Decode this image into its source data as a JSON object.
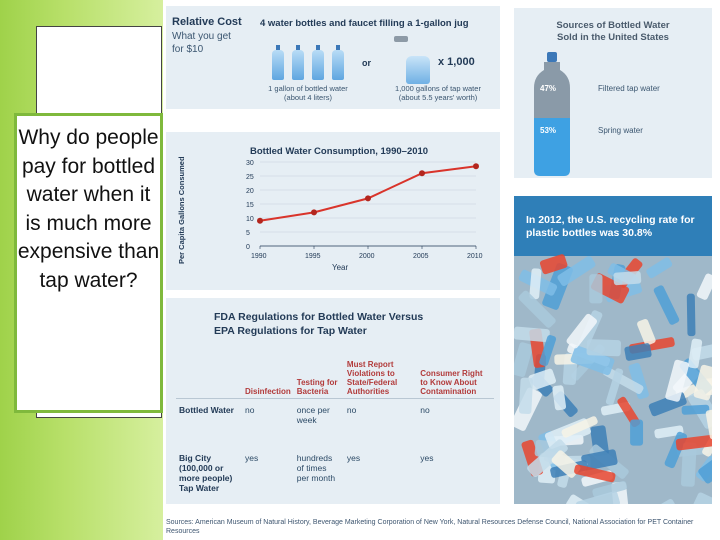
{
  "question": "Why do people pay for bottled water when it is much more expensive than tap water?",
  "cost_panel": {
    "heading": "Relative Cost",
    "subheading": "What you get for $10",
    "title": "4 water bottles and faucet filling a 1-gallon jug",
    "or": "or",
    "multiplier": "x 1,000",
    "left_caption_1": "1 gallon of bottled water",
    "left_caption_2": "(about 4 liters)",
    "right_caption_1": "1,000 gallons of tap water",
    "right_caption_2": "(about 5.5 years' worth)"
  },
  "pie_panel": {
    "title_1": "Sources of Bottled Water",
    "title_2": "Sold in the United States",
    "filtered_pct": "47%",
    "filtered_label": "Filtered tap water",
    "spring_pct": "53%",
    "spring_label": "Spring water",
    "filtered_color": "#8a9aa8",
    "spring_color": "#3ea1e3"
  },
  "chart_data": {
    "type": "line",
    "title": "Bottled Water Consumption, 1990–2010",
    "xlabel": "Year",
    "ylabel": "Per Capita Gallons Consumed",
    "x": [
      1990,
      1995,
      2000,
      2005,
      2010
    ],
    "values": [
      9,
      12,
      17,
      26,
      28.5
    ],
    "xticks": [
      "1990",
      "1995",
      "2000",
      "2005",
      "2010"
    ],
    "yticks": [
      "0",
      "5",
      "10",
      "15",
      "20",
      "25",
      "30"
    ],
    "ylim": [
      0,
      30
    ],
    "line_color": "#d9342b",
    "marker_color": "#b3261e"
  },
  "fda_panel": {
    "title_1": "FDA Regulations for Bottled Water Versus",
    "title_2": "EPA Regulations for Tap Water",
    "columns": [
      "",
      "Disinfection",
      "Testing for Bacteria",
      "Must Report Violations to State/Federal Authorities",
      "Consumer Right to Know About Contamination"
    ],
    "rows": [
      {
        "label": "Bottled Water",
        "cells": [
          "no",
          "once per week",
          "no",
          "no"
        ]
      },
      {
        "label": "Big City (100,000 or more people) Tap Water",
        "cells": [
          "yes",
          "hundreds of times per month",
          "yes",
          "yes"
        ]
      }
    ]
  },
  "photo_panel": {
    "caption": "In 2012, the U.S. recycling rate for plastic bottles was 30.8%"
  },
  "sources": "Sources: American Museum of Natural History, Beverage Marketing Corporation of New York, Natural Resources Defense Council, National Association for PET Container Resources"
}
